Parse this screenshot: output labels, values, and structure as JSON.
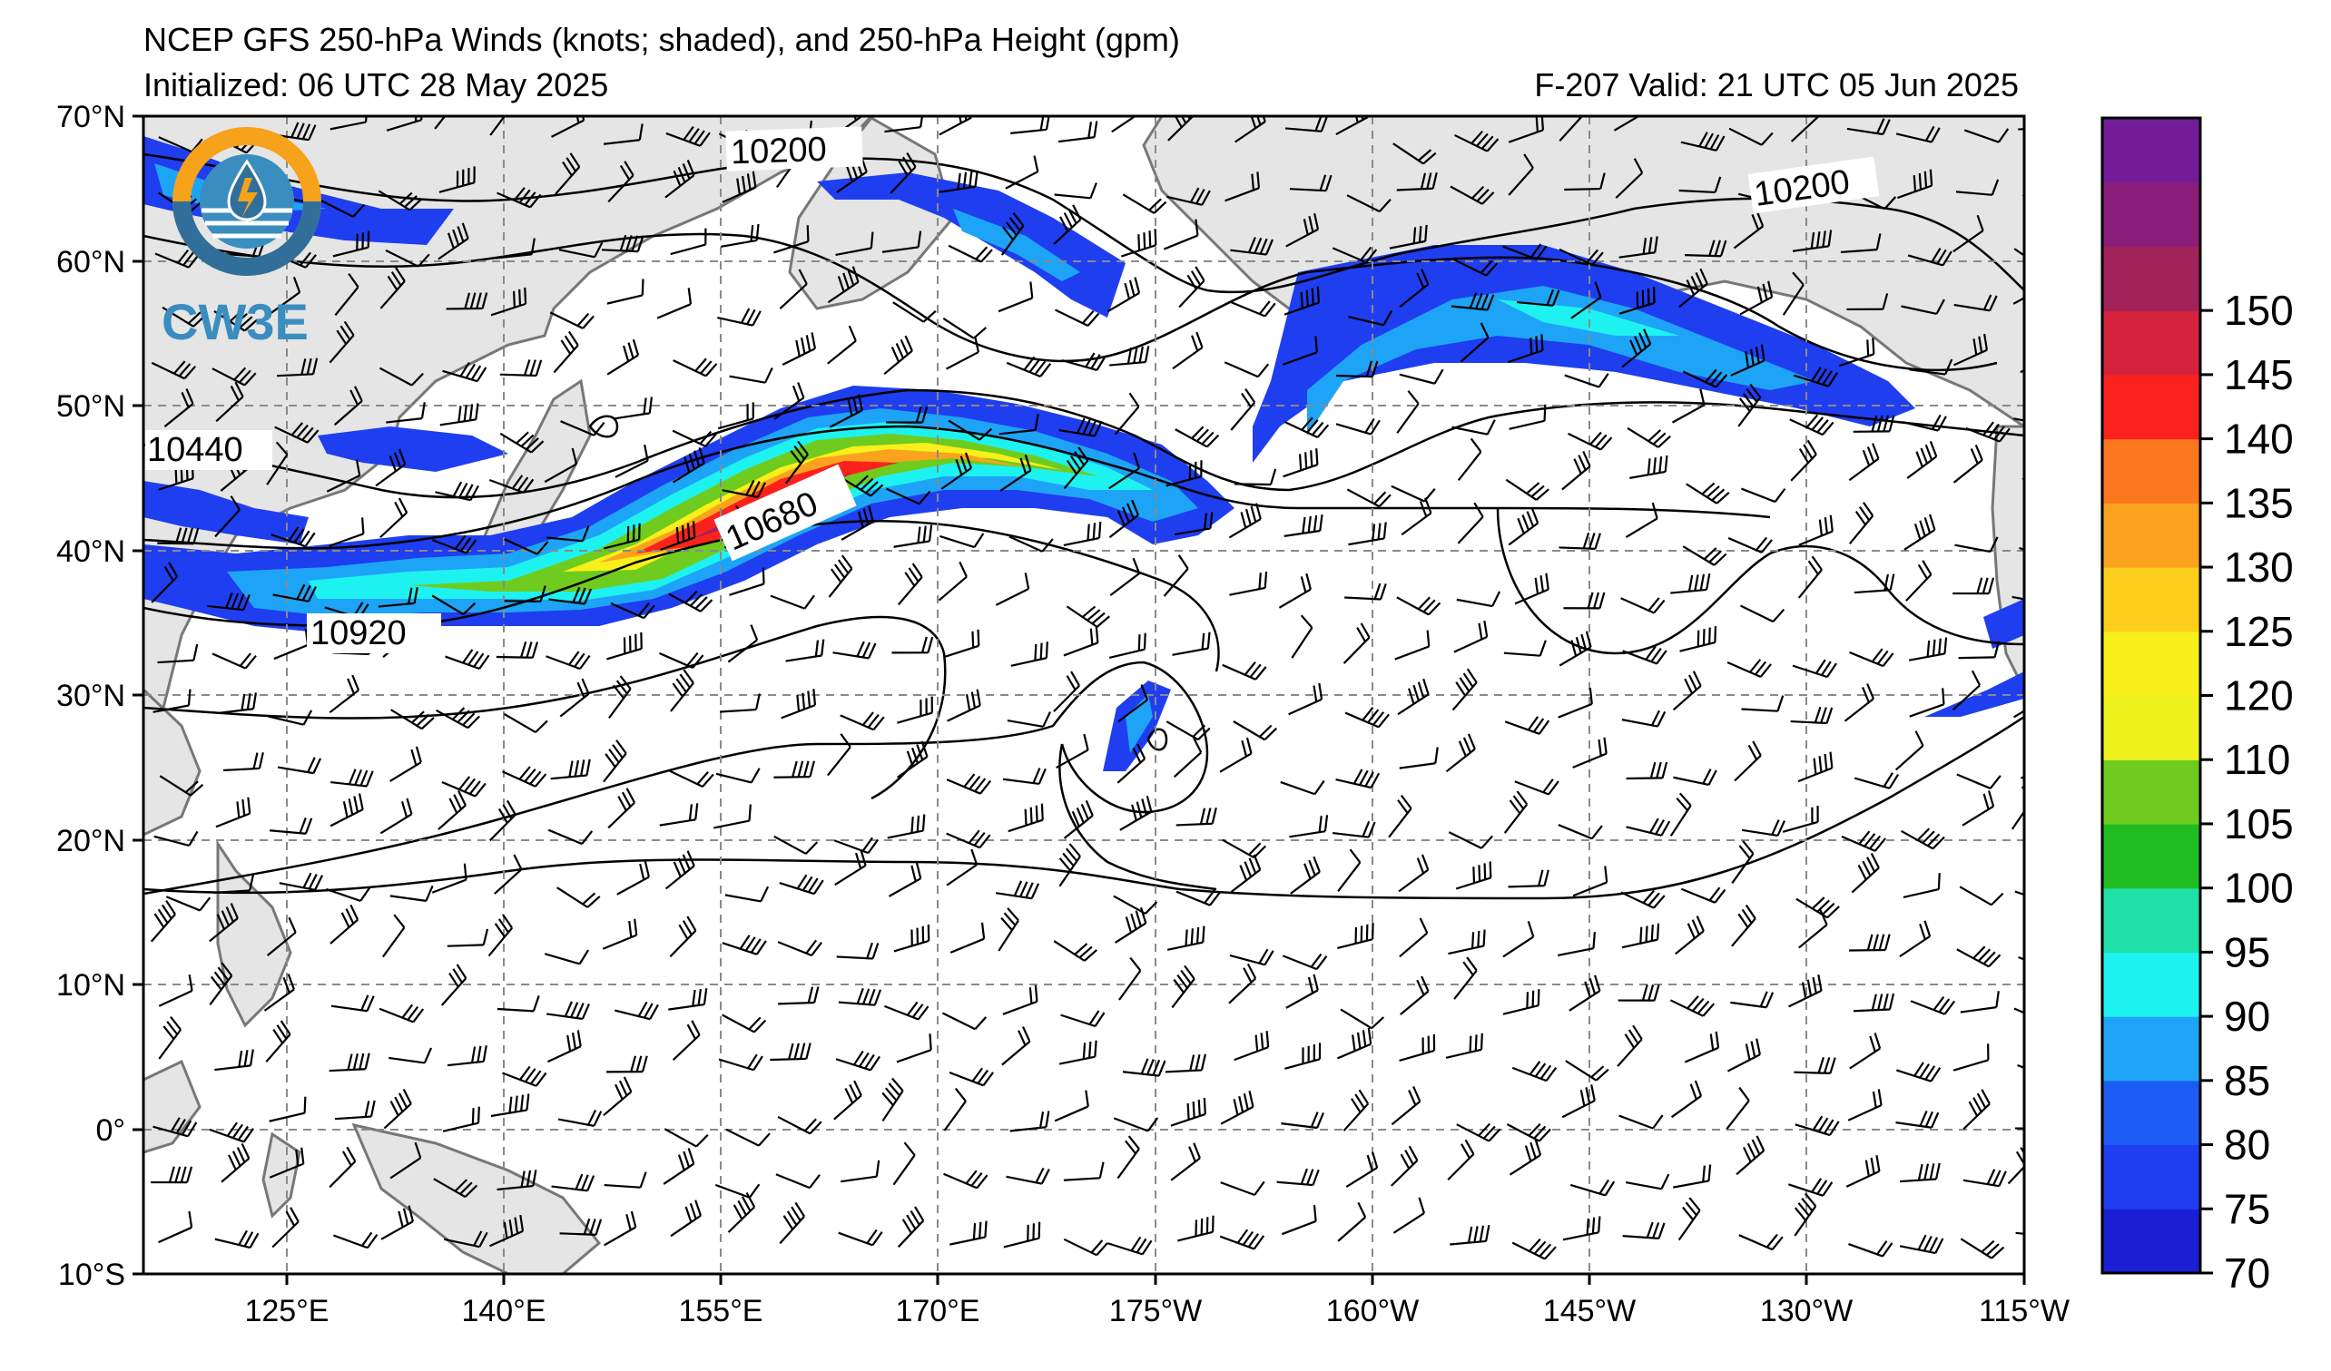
{
  "header": {
    "title": "NCEP GFS 250-hPa Winds (knots; shaded), and 250-hPa Height (gpm)",
    "initialized": "Initialized: 06 UTC 28 May 2025",
    "valid": "F-207  Valid: 21 UTC 05 Jun 2025"
  },
  "logo": {
    "text": "CW3E"
  },
  "axes": {
    "lat_labels": [
      "70°N",
      "60°N",
      "50°N",
      "40°N",
      "30°N",
      "20°N",
      "10°N",
      "0°",
      "10°S"
    ],
    "lon_labels": [
      "125°E",
      "140°E",
      "155°E",
      "170°E",
      "175°W",
      "160°W",
      "145°W",
      "130°W",
      "115°W"
    ]
  },
  "height_contour_labels": [
    "10200",
    "10200",
    "10440",
    "10680",
    "10920"
  ],
  "colorbar": {
    "ticks": [
      "70",
      "75",
      "80",
      "85",
      "90",
      "95",
      "100",
      "105",
      "110",
      "120",
      "125",
      "130",
      "135",
      "140",
      "145",
      "150"
    ],
    "colors": [
      "#1a1fd2",
      "#1f3ef0",
      "#1d5cf4",
      "#1ea4f6",
      "#1ef2f0",
      "#1fe0a6",
      "#1fbd21",
      "#6fcc1f",
      "#eef21c",
      "#f9ef1a",
      "#fbcf1c",
      "#fba31e",
      "#fb781f",
      "#fb221e",
      "#d4223c",
      "#a3225a",
      "#8a1c7a",
      "#741c98"
    ]
  }
}
